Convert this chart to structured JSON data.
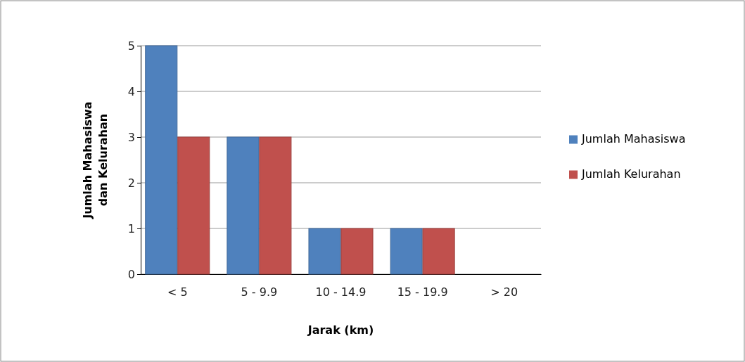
{
  "chart_data": {
    "type": "bar",
    "xlabel": "Jarak (km)",
    "ylabel": "Jumlah Mahasiswa dan Kelurahan",
    "categories": [
      "< 5",
      "5 - 9.9",
      "10 - 14.9",
      "15 - 19.9",
      "> 20"
    ],
    "series": [
      {
        "name": "Jumlah Mahasiswa",
        "color": "#4f81bd",
        "values": [
          5,
          3,
          1,
          1,
          0
        ]
      },
      {
        "name": "Jumlah Kelurahan",
        "color": "#c0504d",
        "values": [
          3,
          3,
          1,
          1,
          0
        ]
      }
    ],
    "ylim": [
      0,
      5
    ],
    "yticks": [
      0,
      1,
      2,
      3,
      4,
      5
    ],
    "grid": "y",
    "legend": "right"
  }
}
